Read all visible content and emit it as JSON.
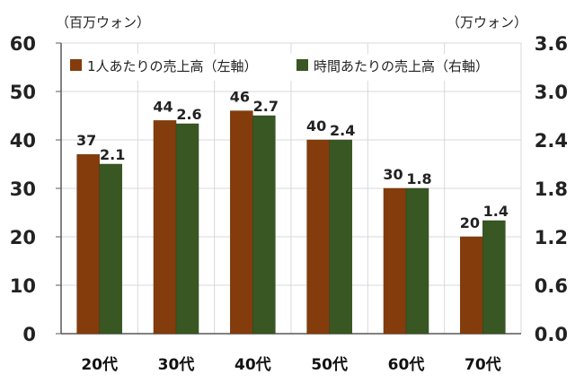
{
  "chart_data": {
    "type": "bar",
    "categories": [
      "20代",
      "30代",
      "40代",
      "50代",
      "60代",
      "70代"
    ],
    "series": [
      {
        "name": "1人あたりの売上高（左軸）",
        "axis": "left",
        "color": "#843C0C",
        "values": [
          37,
          44,
          46,
          40,
          30,
          20
        ],
        "labels": [
          "37",
          "44",
          "46",
          "40",
          "30",
          "20"
        ]
      },
      {
        "name": "時間あたりの売上高（右軸）",
        "axis": "right",
        "color": "#385723",
        "values": [
          2.1,
          2.6,
          2.7,
          2.4,
          1.8,
          1.4
        ],
        "labels": [
          "2.1",
          "2.6",
          "2.7",
          "2.4",
          "1.8",
          "1.4"
        ]
      }
    ],
    "ylabel_left": "（百万ウォン）",
    "ylabel_right": "（万ウォン）",
    "ylim_left": [
      0,
      60
    ],
    "ylim_right": [
      0,
      3.6
    ],
    "yticks_left": [
      "0",
      "10",
      "20",
      "30",
      "40",
      "50",
      "60"
    ],
    "yticks_right": [
      "0.0",
      "0.6",
      "1.2",
      "1.8",
      "2.4",
      "3.0",
      "3.6"
    ],
    "grid": true,
    "legend": "top"
  }
}
